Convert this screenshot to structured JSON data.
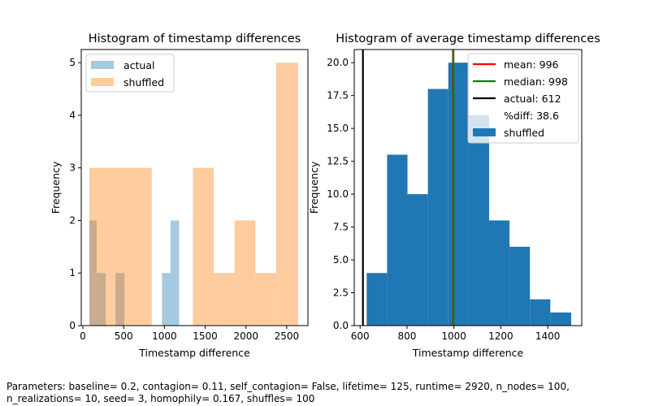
{
  "caption": "Parameters: baseline= 0.2, contagion= 0.11, self_contagion= False, lifetime= 125, runtime= 2920, n_nodes= 100, n_realizations= 10, seed= 3, homophily= 0.167, shuffles= 100",
  "colors": {
    "actual": "#1f77b4",
    "shuffled": "#ff7f0e",
    "mean": "#ff0000",
    "median": "#008000",
    "actual_line": "#000000",
    "hist_shuffled": "#1f77b4"
  },
  "chart_data": [
    {
      "type": "bar",
      "title": "Histogram of timestamp differences",
      "xlabel": "Timestamp difference",
      "ylabel": "Frequency",
      "xlim": [
        -20,
        2760
      ],
      "ylim": [
        0,
        5.25
      ],
      "xticks": [
        0,
        500,
        1000,
        1500,
        2000,
        2500
      ],
      "yticks": [
        0,
        1,
        2,
        3,
        4,
        5
      ],
      "legend_position": "top-left",
      "series": [
        {
          "name": "actual",
          "alpha": 0.4,
          "bins": [
            {
              "x0": 80,
              "x1": 170,
              "count": 2
            },
            {
              "x0": 170,
              "x1": 280,
              "count": 1
            },
            {
              "x0": 400,
              "x1": 510,
              "count": 1
            },
            {
              "x0": 970,
              "x1": 1075,
              "count": 1
            },
            {
              "x0": 1075,
              "x1": 1180,
              "count": 2
            }
          ]
        },
        {
          "name": "shuffled",
          "alpha": 0.4,
          "bins": [
            {
              "x0": 80,
              "x1": 335,
              "count": 3
            },
            {
              "x0": 335,
              "x1": 590,
              "count": 3
            },
            {
              "x0": 590,
              "x1": 845,
              "count": 3
            },
            {
              "x0": 1350,
              "x1": 1605,
              "count": 3
            },
            {
              "x0": 1605,
              "x1": 1860,
              "count": 1
            },
            {
              "x0": 1860,
              "x1": 2115,
              "count": 2
            },
            {
              "x0": 2115,
              "x1": 2370,
              "count": 1
            },
            {
              "x0": 2370,
              "x1": 2640,
              "count": 5
            }
          ]
        }
      ]
    },
    {
      "type": "bar",
      "title": "Histogram of average timestamp differences",
      "xlabel": "Timestamp difference",
      "ylabel": "Frequency",
      "xlim": [
        575,
        1545
      ],
      "ylim": [
        0,
        21
      ],
      "xticks": [
        600,
        800,
        1000,
        1200,
        1400
      ],
      "yticks": [
        0.0,
        2.5,
        5.0,
        7.5,
        10.0,
        12.5,
        15.0,
        17.5,
        20.0
      ],
      "legend_position": "top-right",
      "series": [
        {
          "name": "shuffled",
          "bins": [
            {
              "x0": 628,
              "x1": 715,
              "count": 4
            },
            {
              "x0": 715,
              "x1": 802,
              "count": 13
            },
            {
              "x0": 802,
              "x1": 889,
              "count": 10
            },
            {
              "x0": 889,
              "x1": 976,
              "count": 18
            },
            {
              "x0": 976,
              "x1": 1063,
              "count": 20
            },
            {
              "x0": 1063,
              "x1": 1150,
              "count": 16
            },
            {
              "x0": 1150,
              "x1": 1237,
              "count": 8
            },
            {
              "x0": 1237,
              "x1": 1324,
              "count": 6
            },
            {
              "x0": 1324,
              "x1": 1411,
              "count": 2
            },
            {
              "x0": 1411,
              "x1": 1500,
              "count": 1
            }
          ]
        }
      ],
      "vlines": [
        {
          "name": "mean",
          "value": 996,
          "label": "mean: 996"
        },
        {
          "name": "median",
          "value": 998,
          "label": "median: 998"
        },
        {
          "name": "actual",
          "value": 612,
          "label": "actual: 612"
        }
      ],
      "extra_legend_text": "%diff: 38.6",
      "legend_series_label": "shuffled"
    }
  ]
}
